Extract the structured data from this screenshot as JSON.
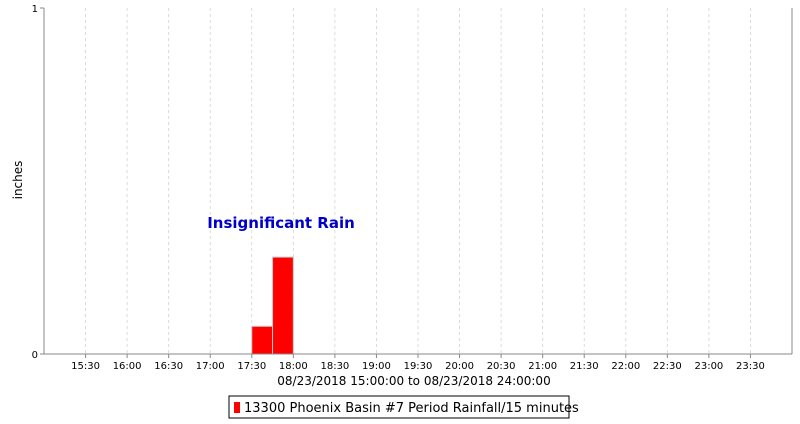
{
  "chart_data": {
    "type": "bar",
    "title": "",
    "ylabel": "inches",
    "xlabel": "08/23/2018 15:00:00 to 08/23/2018 24:00:00",
    "ylim": [
      0,
      1
    ],
    "y_ticks": [
      "0",
      "1"
    ],
    "x_start": "15:00",
    "x_end": "24:00",
    "x_ticks": [
      "15:30",
      "16:00",
      "16:30",
      "17:00",
      "17:30",
      "18:00",
      "18:30",
      "19:00",
      "19:30",
      "20:00",
      "20:30",
      "21:00",
      "21:30",
      "22:00",
      "22:30",
      "23:00",
      "23:30"
    ],
    "grid": true,
    "legend_position": "bottom-center",
    "annotation": "Insignificant Rain",
    "series": [
      {
        "name": "13300 Phoenix Basin #7 Period Rainfall/15 minutes",
        "color": "#ff0000",
        "bars": [
          {
            "start": "17:30",
            "end": "17:45",
            "value": 0.08
          },
          {
            "start": "17:45",
            "end": "18:00",
            "value": 0.28
          }
        ]
      }
    ]
  },
  "colors": {
    "bar": "#ff0000",
    "bar_edge": "#c8c8c8",
    "annotation": "#0000c8",
    "grid": "#d2d2d2",
    "axis": "#888888"
  }
}
